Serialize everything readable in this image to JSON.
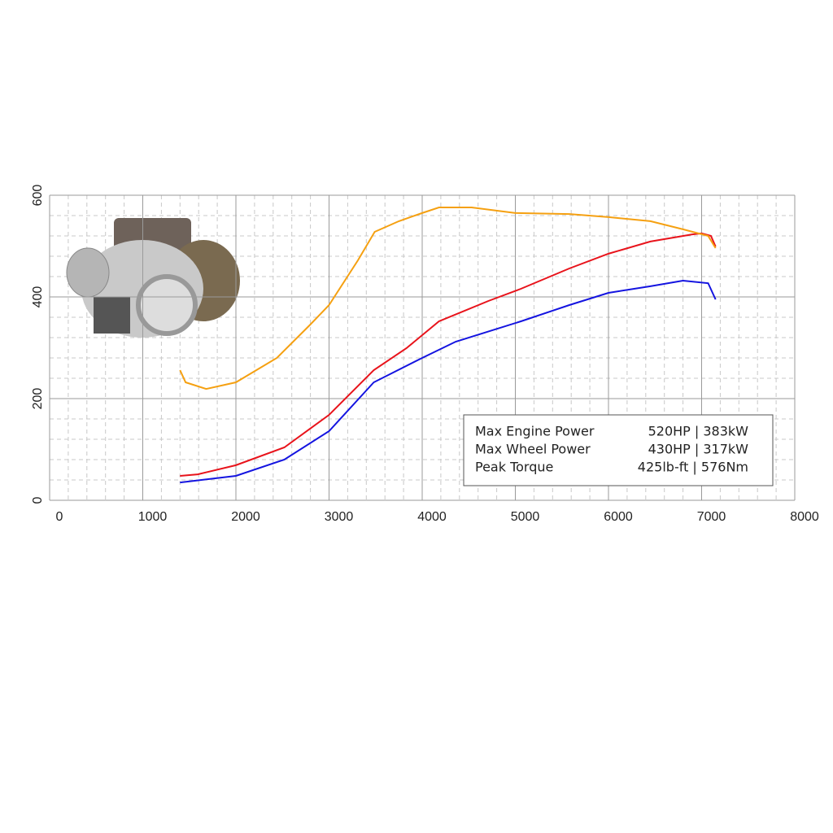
{
  "chart_data": {
    "type": "line",
    "xlim": [
      0,
      8000
    ],
    "xticks": [
      0,
      1000,
      2000,
      3000,
      4000,
      5000,
      6000,
      7000,
      8000
    ],
    "ylim": [
      0,
      600
    ],
    "yticks": [
      0,
      200,
      400,
      600
    ],
    "grid": true,
    "legend": "lower right",
    "series": [
      {
        "name": "Max Engine Power",
        "annotation": "520HP | 383kW",
        "color": "#e8131b",
        "x": [
          1400,
          1590,
          2000,
          2520,
          3000,
          3480,
          3830,
          4180,
          4710,
          5060,
          5580,
          6000,
          6450,
          6900,
          7000,
          7100,
          7150
        ],
        "values": [
          48,
          51,
          69,
          104,
          168,
          256,
          299,
          352,
          392,
          416,
          456,
          485,
          509,
          523,
          525,
          520,
          499
        ]
      },
      {
        "name": "Max Wheel Power",
        "annotation": "430HP | 317kW",
        "color": "#1414e0",
        "x": [
          1400,
          2000,
          2520,
          3000,
          3480,
          4000,
          4360,
          5060,
          5580,
          6000,
          6450,
          6800,
          7070,
          7150
        ],
        "values": [
          35,
          48,
          80,
          136,
          232,
          280,
          312,
          352,
          384,
          408,
          421,
          432,
          427,
          395
        ]
      },
      {
        "name": "Peak Torque",
        "annotation": "425lb-ft | 576Nm",
        "color": "#f5a011",
        "x": [
          1400,
          1460,
          1680,
          2000,
          2440,
          2790,
          3000,
          3310,
          3490,
          3750,
          4000,
          4180,
          4530,
          5000,
          5580,
          6000,
          6450,
          6800,
          7070,
          7150
        ],
        "values": [
          256,
          232,
          219,
          232,
          280,
          344,
          384,
          472,
          528,
          549,
          565,
          576,
          576,
          565,
          563,
          557,
          549,
          533,
          520,
          496
        ]
      }
    ]
  }
}
